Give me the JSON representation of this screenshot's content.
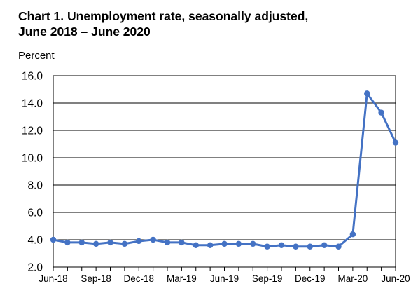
{
  "chart_data": {
    "type": "line",
    "title_line1": "Chart 1. Unemployment rate, seasonally adjusted,",
    "title_line2": "June 2018 – June 2020",
    "ylabel": "Percent",
    "xlabel": "",
    "ylim": [
      2.0,
      16.0
    ],
    "yticks": [
      "2.0",
      "4.0",
      "6.0",
      "8.0",
      "10.0",
      "12.0",
      "14.0",
      "16.0"
    ],
    "grid": true,
    "x": [
      "Jun-18",
      "Jul-18",
      "Aug-18",
      "Sep-18",
      "Oct-18",
      "Nov-18",
      "Dec-18",
      "Jan-19",
      "Feb-19",
      "Mar-19",
      "Apr-19",
      "May-19",
      "Jun-19",
      "Jul-19",
      "Aug-19",
      "Sep-19",
      "Oct-19",
      "Nov-19",
      "Dec-19",
      "Jan-20",
      "Feb-20",
      "Mar-20",
      "Apr-20",
      "May-20",
      "Jun-20"
    ],
    "xtick_labels": [
      "Jun-18",
      "Sep-18",
      "Dec-18",
      "Mar-19",
      "Jun-19",
      "Sep-19",
      "Dec-19",
      "Mar-20",
      "Jun-20"
    ],
    "series": [
      {
        "values": [
          4.0,
          3.8,
          3.8,
          3.7,
          3.8,
          3.7,
          3.9,
          4.0,
          3.8,
          3.8,
          3.6,
          3.6,
          3.7,
          3.7,
          3.7,
          3.5,
          3.6,
          3.5,
          3.5,
          3.6,
          3.5,
          4.4,
          14.7,
          13.3,
          11.1
        ],
        "color": "#4472C4"
      }
    ]
  }
}
